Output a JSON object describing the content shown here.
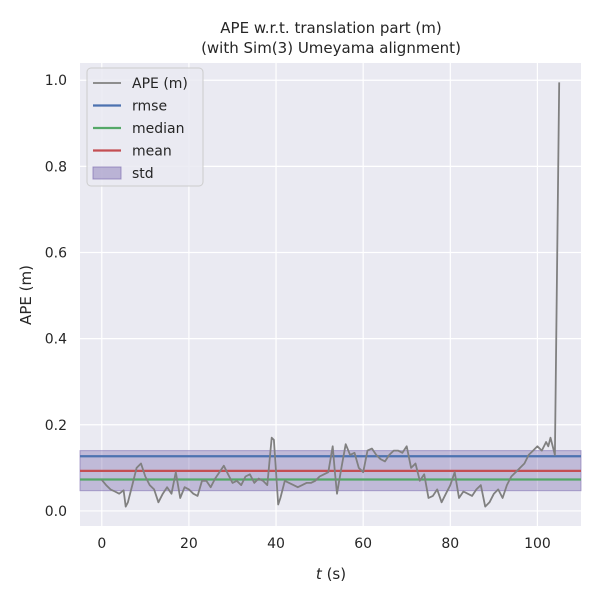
{
  "chart_data": {
    "type": "line",
    "title": "APE w.r.t. translation part (m)",
    "subtitle": "(with Sim(3) Umeyama alignment)",
    "xlabel_italic": "t",
    "xlabel_unit": " (s)",
    "ylabel": "APE (m)",
    "xlim": [
      -5,
      110
    ],
    "ylim": [
      -0.035,
      1.04
    ],
    "xticks": [
      0,
      20,
      40,
      60,
      80,
      100
    ],
    "yticks": [
      0.0,
      0.2,
      0.4,
      0.6,
      0.8,
      1.0
    ],
    "xtick_labels": [
      "0",
      "20",
      "40",
      "60",
      "80",
      "100"
    ],
    "ytick_labels": [
      "0.0",
      "0.2",
      "0.4",
      "0.6",
      "0.8",
      "1.0"
    ],
    "grid": true,
    "legend_position": "top-left",
    "legend": [
      "APE (m)",
      "rmse",
      "median",
      "mean",
      "std"
    ],
    "colors": {
      "background": "#EAEAF2",
      "grid": "#FFFFFF",
      "ape": "#808080",
      "rmse": "#4C72B0",
      "median": "#55A868",
      "mean": "#C44E52",
      "std_fill": "#8172B2"
    },
    "stats": {
      "rmse": 0.127,
      "median": 0.073,
      "mean": 0.093,
      "std_low": 0.047,
      "std_high": 0.14
    },
    "series": [
      {
        "name": "APE (m)",
        "x": [
          0,
          1,
          2,
          3,
          4,
          5,
          5.5,
          6,
          7,
          8,
          9,
          10,
          11,
          12,
          13,
          14,
          15,
          16,
          17,
          18,
          19,
          20,
          21,
          22,
          23,
          24,
          25,
          26,
          27,
          28,
          29,
          30,
          31,
          32,
          33,
          34,
          35,
          36,
          37,
          38,
          39,
          39.5,
          40.5,
          41,
          42,
          43,
          44,
          45,
          46,
          47,
          48,
          49,
          50,
          51,
          52,
          53,
          53.5,
          54,
          55,
          56,
          57,
          58,
          59,
          60,
          61,
          62,
          63,
          64,
          65,
          66,
          67,
          68,
          69,
          70,
          71,
          72,
          73,
          74,
          75,
          76,
          77,
          78,
          79,
          80,
          81,
          82,
          83,
          84,
          85,
          86,
          87,
          88,
          89,
          90,
          91,
          92,
          93,
          94,
          95,
          96,
          97,
          98,
          99,
          100,
          101,
          102,
          102.5,
          103,
          104,
          105
        ],
        "values": [
          0.072,
          0.06,
          0.05,
          0.045,
          0.04,
          0.048,
          0.01,
          0.02,
          0.06,
          0.1,
          0.11,
          0.08,
          0.06,
          0.05,
          0.02,
          0.04,
          0.055,
          0.04,
          0.09,
          0.03,
          0.055,
          0.05,
          0.04,
          0.035,
          0.07,
          0.07,
          0.055,
          0.075,
          0.09,
          0.105,
          0.085,
          0.065,
          0.07,
          0.06,
          0.08,
          0.085,
          0.065,
          0.075,
          0.07,
          0.06,
          0.17,
          0.165,
          0.015,
          0.03,
          0.07,
          0.065,
          0.06,
          0.055,
          0.06,
          0.065,
          0.065,
          0.07,
          0.08,
          0.085,
          0.09,
          0.15,
          0.09,
          0.04,
          0.1,
          0.155,
          0.13,
          0.135,
          0.1,
          0.09,
          0.14,
          0.145,
          0.13,
          0.12,
          0.115,
          0.13,
          0.14,
          0.14,
          0.135,
          0.15,
          0.1,
          0.11,
          0.07,
          0.085,
          0.03,
          0.035,
          0.05,
          0.02,
          0.04,
          0.06,
          0.09,
          0.03,
          0.045,
          0.04,
          0.035,
          0.05,
          0.06,
          0.01,
          0.02,
          0.04,
          0.05,
          0.03,
          0.06,
          0.08,
          0.09,
          0.1,
          0.11,
          0.13,
          0.14,
          0.15,
          0.14,
          0.16,
          0.15,
          0.17,
          0.13,
          0.995
        ]
      }
    ]
  }
}
